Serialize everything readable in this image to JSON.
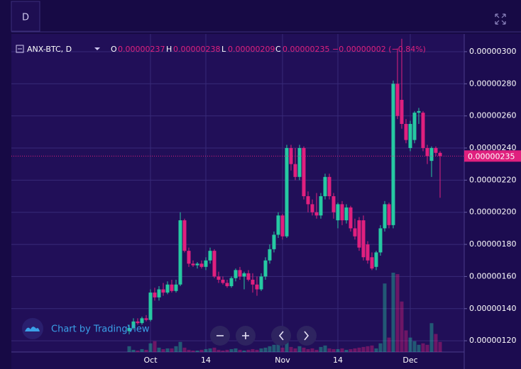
{
  "toolbar": {
    "interval": "D"
  },
  "legend": {
    "symbol": "ANX-BTC, D",
    "open_label": "O",
    "open": "0.00000237",
    "high_label": "H",
    "high": "0.00000238",
    "low_label": "L",
    "low": "0.00000209",
    "close_label": "C",
    "close": "0.00000235",
    "change": "−0.00000002 (−0.84%)"
  },
  "branding": "Chart by TradingView",
  "chart_data": {
    "type": "candlestick",
    "categories": [
      null,
      null,
      null,
      null,
      null,
      "Oct",
      null,
      null,
      null,
      null,
      null,
      null,
      null,
      null,
      null,
      null,
      null,
      null,
      "14",
      null,
      null,
      null,
      null,
      null,
      null,
      null,
      null,
      null,
      null,
      null,
      null,
      null,
      null,
      null,
      null,
      null,
      "Nov",
      null,
      null,
      null,
      null,
      null,
      null,
      null,
      null,
      null,
      null,
      null,
      null,
      "14",
      null,
      null,
      null,
      null,
      null,
      null,
      null,
      null,
      null,
      null,
      null,
      null,
      null,
      null,
      null,
      null,
      "Dec",
      null,
      null,
      null,
      null,
      null,
      null,
      null
    ],
    "candles": [
      [
        1.26e-06,
        1.3e-06,
        1.24e-06,
        1.28e-06
      ],
      [
        1.28e-06,
        1.34e-06,
        1.27e-06,
        1.32e-06
      ],
      [
        1.32e-06,
        1.34e-06,
        1.3e-06,
        1.31e-06
      ],
      [
        1.31e-06,
        1.35e-06,
        1.3e-06,
        1.34e-06
      ],
      [
        1.34e-06,
        1.36e-06,
        1.32e-06,
        1.33e-06
      ],
      [
        1.33e-06,
        1.52e-06,
        1.32e-06,
        1.5e-06
      ],
      [
        1.5e-06,
        1.53e-06,
        1.45e-06,
        1.47e-06
      ],
      [
        1.47e-06,
        1.54e-06,
        1.45e-06,
        1.52e-06
      ],
      [
        1.52e-06,
        1.56e-06,
        1.48e-06,
        1.5e-06
      ],
      [
        1.5e-06,
        1.57e-06,
        1.49e-06,
        1.55e-06
      ],
      [
        1.55e-06,
        1.58e-06,
        1.5e-06,
        1.51e-06
      ],
      [
        1.51e-06,
        1.58e-06,
        1.5e-06,
        1.55e-06
      ],
      [
        1.55e-06,
        2e-06,
        1.54e-06,
        1.95e-06
      ],
      [
        1.95e-06,
        1.96e-06,
        1.75e-06,
        1.76e-06
      ],
      [
        1.76e-06,
        1.78e-06,
        1.66e-06,
        1.68e-06
      ],
      [
        1.68e-06,
        1.7e-06,
        1.66e-06,
        1.67e-06
      ],
      [
        1.67e-06,
        1.69e-06,
        1.65e-06,
        1.68e-06
      ],
      [
        1.68e-06,
        1.7e-06,
        1.65e-06,
        1.66e-06
      ],
      [
        1.66e-06,
        1.72e-06,
        1.64e-06,
        1.7e-06
      ],
      [
        1.7e-06,
        1.78e-06,
        1.68e-06,
        1.76e-06
      ],
      [
        1.76e-06,
        1.77e-06,
        1.59e-06,
        1.6e-06
      ],
      [
        1.6e-06,
        1.63e-06,
        1.56e-06,
        1.58e-06
      ],
      [
        1.58e-06,
        1.6e-06,
        1.55e-06,
        1.56e-06
      ],
      [
        1.56e-06,
        1.58e-06,
        1.53e-06,
        1.54e-06
      ],
      [
        1.54e-06,
        1.6e-06,
        1.53e-06,
        1.59e-06
      ],
      [
        1.59e-06,
        1.65e-06,
        1.57e-06,
        1.64e-06
      ],
      [
        1.64e-06,
        1.66e-06,
        1.58e-06,
        1.6e-06
      ],
      [
        1.6e-06,
        1.63e-06,
        1.52e-06,
        1.62e-06
      ],
      [
        1.62e-06,
        1.64e-06,
        1.57e-06,
        1.58e-06
      ],
      [
        1.58e-06,
        1.62e-06,
        1.5e-06,
        1.55e-06
      ],
      [
        1.55e-06,
        1.6e-06,
        1.48e-06,
        1.52e-06
      ],
      [
        1.52e-06,
        1.62e-06,
        1.51e-06,
        1.6e-06
      ],
      [
        1.6e-06,
        1.72e-06,
        1.58e-06,
        1.7e-06
      ],
      [
        1.7e-06,
        1.8e-06,
        1.68e-06,
        1.77e-06
      ],
      [
        1.77e-06,
        1.88e-06,
        1.75e-06,
        1.86e-06
      ],
      [
        1.86e-06,
        2e-06,
        1.84e-06,
        1.98e-06
      ],
      [
        1.98e-06,
        1.99e-06,
        1.83e-06,
        1.85e-06
      ],
      [
        1.85e-06,
        2.42e-06,
        1.84e-06,
        2.4e-06
      ],
      [
        2.4e-06,
        2.42e-06,
        2.26e-06,
        2.3e-06
      ],
      [
        2.3e-06,
        2.4e-06,
        2.2e-06,
        2.22e-06
      ],
      [
        2.22e-06,
        2.42e-06,
        2.2e-06,
        2.4e-06
      ],
      [
        2.4e-06,
        2.41e-06,
        2.08e-06,
        2.1e-06
      ],
      [
        2.1e-06,
        2.13e-06,
        2e-06,
        2.05e-06
      ],
      [
        2.05e-06,
        2.08e-06,
        1.98e-06,
        2e-06
      ],
      [
        2e-06,
        2.12e-06,
        1.96e-06,
        1.98e-06
      ],
      [
        1.98e-06,
        2.12e-06,
        1.96e-06,
        2.1e-06
      ],
      [
        2.1e-06,
        2.24e-06,
        2.08e-06,
        2.22e-06
      ],
      [
        2.22e-06,
        2.24e-06,
        2.08e-06,
        2.1e-06
      ],
      [
        2.1e-06,
        2.12e-06,
        1.96e-06,
        2e-06
      ],
      [
        1.95e-06,
        2.06e-06,
        1.9e-06,
        2.05e-06
      ],
      [
        2.05e-06,
        2.07e-06,
        1.92e-06,
        1.95e-06
      ],
      [
        1.95e-06,
        2.05e-06,
        1.93e-06,
        2.03e-06
      ],
      [
        2.03e-06,
        2.04e-06,
        1.88e-06,
        1.9e-06
      ],
      [
        1.9e-06,
        1.96e-06,
        1.83e-06,
        1.85e-06
      ],
      [
        1.95e-06,
        1.97e-06,
        1.76e-06,
        1.78e-06
      ],
      [
        1.95e-06,
        1.98e-06,
        1.7e-06,
        1.72e-06
      ],
      [
        1.8e-06,
        1.82e-06,
        1.68e-06,
        1.7e-06
      ],
      [
        1.72e-06,
        1.75e-06,
        1.64e-06,
        1.65e-06
      ],
      [
        1.66e-06,
        1.76e-06,
        1.64e-06,
        1.75e-06
      ],
      [
        1.75e-06,
        1.92e-06,
        1.73e-06,
        1.9e-06
      ],
      [
        1.9e-06,
        2.07e-06,
        1.88e-06,
        2.05e-06
      ],
      [
        2.05e-06,
        2.06e-06,
        1.9e-06,
        1.92e-06
      ],
      [
        1.92e-06,
        2.82e-06,
        1.9e-06,
        2.8e-06
      ],
      [
        2.8e-06,
        3.02e-06,
        2.58e-06,
        2.6e-06
      ],
      [
        2.7e-06,
        3.08e-06,
        2.52e-06,
        2.55e-06
      ],
      [
        2.55e-06,
        2.58e-06,
        2.43e-06,
        2.45e-06
      ],
      [
        2.4e-06,
        2.57e-06,
        2.38e-06,
        2.55e-06
      ],
      [
        2.45e-06,
        2.63e-06,
        2.43e-06,
        2.62e-06
      ],
      [
        2.62e-06,
        2.65e-06,
        2.55e-06,
        2.63e-06
      ],
      [
        2.62e-06,
        2.63e-06,
        2.38e-06,
        2.4e-06
      ],
      [
        2.4e-06,
        2.42e-06,
        2.3e-06,
        2.35e-06
      ],
      [
        2.32e-06,
        2.41e-06,
        2.22e-06,
        2.4e-06
      ],
      [
        2.4e-06,
        2.41e-06,
        2.35e-06,
        2.37e-06
      ],
      [
        2.37e-06,
        2.38e-06,
        2.09e-06,
        2.35e-06
      ]
    ],
    "volumes": [
      8,
      3,
      2,
      4,
      3,
      12,
      15,
      6,
      4,
      5,
      5,
      8,
      14,
      6,
      3,
      2,
      2,
      3,
      4,
      5,
      6,
      3,
      2,
      3,
      4,
      5,
      3,
      2,
      3,
      4,
      3,
      5,
      6,
      8,
      10,
      12,
      6,
      14,
      7,
      5,
      8,
      6,
      4,
      5,
      3,
      7,
      9,
      5,
      4,
      4,
      5,
      3,
      4,
      5,
      6,
      7,
      8,
      9,
      5,
      12,
      95,
      20,
      110,
      108,
      70,
      30,
      20,
      15,
      10,
      12,
      10,
      40,
      25,
      14
    ],
    "up_color": "#26c9a2",
    "down_color": "#e0207e",
    "ylim": [
      1.13e-06,
      3.11e-06
    ],
    "yticks": [
      {
        "value": 1.2e-06,
        "label": "0.00000120"
      },
      {
        "value": 1.4e-06,
        "label": "0.00000140"
      },
      {
        "value": 1.6e-06,
        "label": "0.00000160"
      },
      {
        "value": 1.8e-06,
        "label": "0.00000180"
      },
      {
        "value": 2e-06,
        "label": "0.00000200"
      },
      {
        "value": 2.2e-06,
        "label": "0.00000220"
      },
      {
        "value": 2.4e-06,
        "label": "0.00000240"
      },
      {
        "value": 2.6e-06,
        "label": "0.00000260"
      },
      {
        "value": 2.8e-06,
        "label": "0.00000280"
      },
      {
        "value": 3e-06,
        "label": "0.00000300"
      }
    ],
    "last_price": {
      "value": 2.35e-06,
      "label": "0.00000235"
    },
    "grid": true
  }
}
